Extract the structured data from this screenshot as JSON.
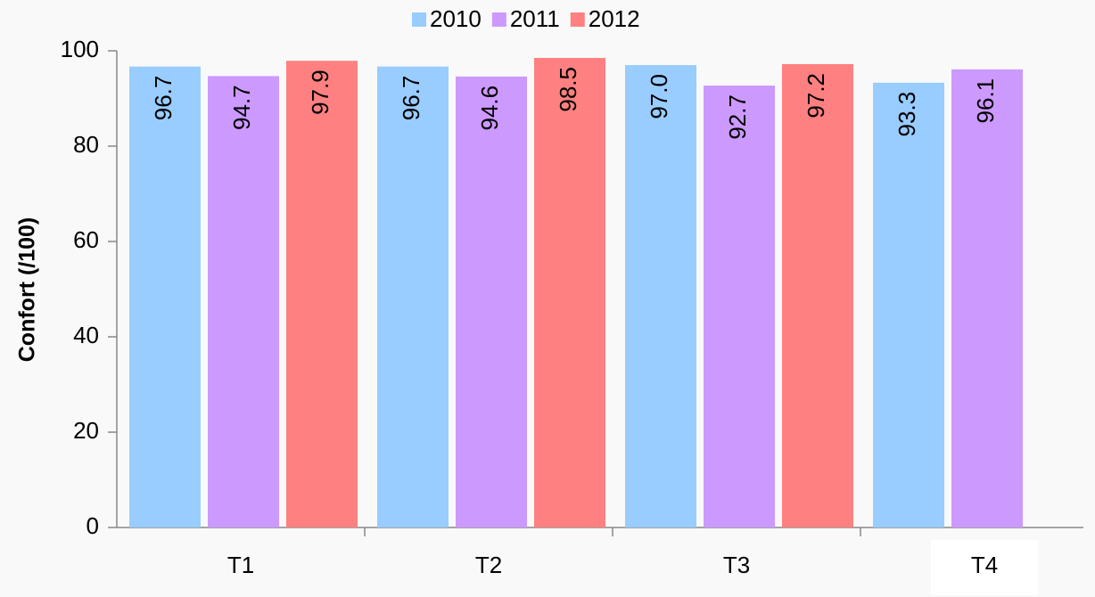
{
  "chart_data": {
    "type": "bar",
    "y_label": "Confort (/100)",
    "categories": [
      "T1",
      "T2",
      "T3",
      "T4"
    ],
    "series": [
      {
        "name": "2010",
        "color": "#99ccff",
        "values": [
          96.7,
          96.7,
          97.0,
          93.3
        ],
        "value_labels": [
          "96.7",
          "96.7",
          "97.0",
          "93.3"
        ]
      },
      {
        "name": "2011",
        "color": "#cc99ff",
        "values": [
          94.7,
          94.6,
          92.7,
          96.1
        ],
        "value_labels": [
          "94.7",
          "94.6",
          "92.7",
          "96.1"
        ]
      },
      {
        "name": "2012",
        "color": "#ff8080",
        "values": [
          97.9,
          98.5,
          97.2,
          null
        ],
        "value_labels": [
          "97.9",
          "98.5",
          "97.2",
          null
        ]
      }
    ],
    "ylim": [
      0,
      100
    ],
    "yticks": [
      0,
      20,
      40,
      60,
      80,
      100
    ],
    "grid": false,
    "legend": "top"
  }
}
